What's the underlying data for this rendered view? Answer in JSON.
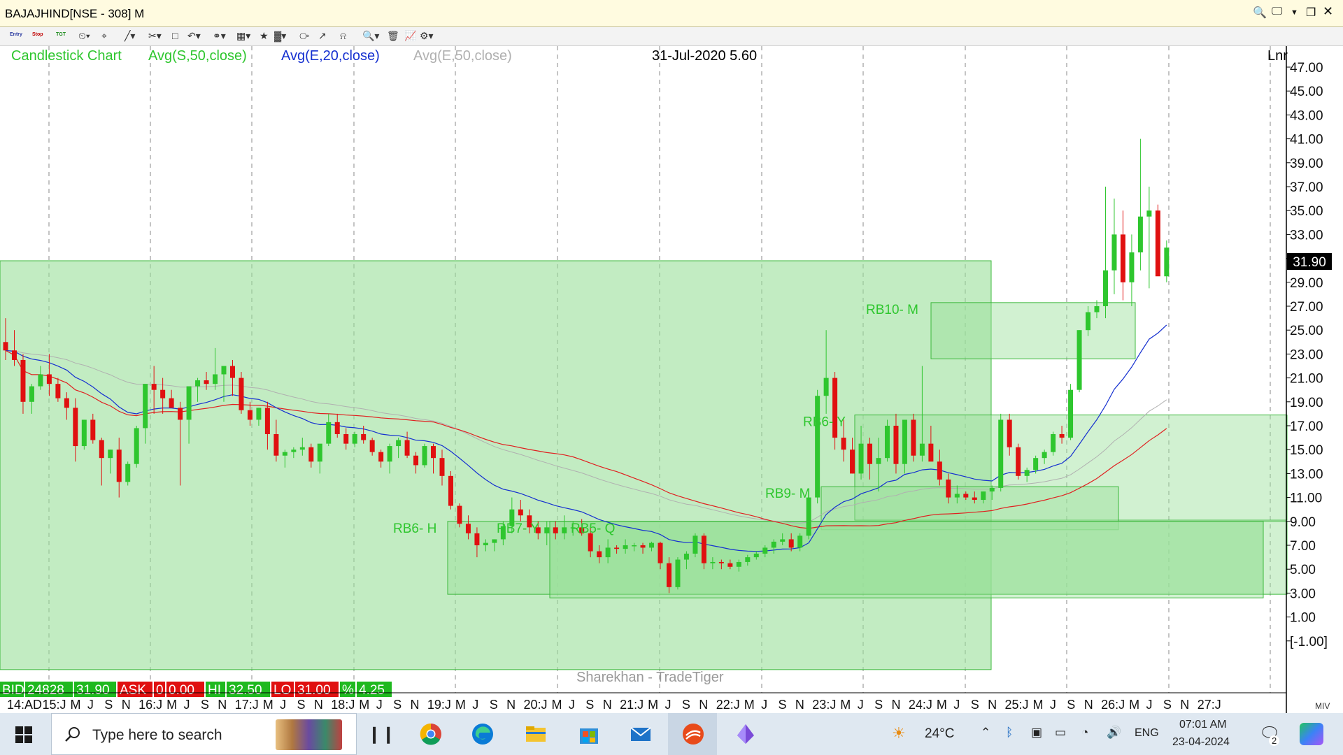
{
  "window": {
    "title": "BAJAJHIND[NSE - 308] M"
  },
  "toolbar": {
    "entry_label": "Entry",
    "stop_label": "Stop",
    "tgt_label": "TGT"
  },
  "legend": {
    "candlestick": "Candlestick Chart",
    "sma50": "Avg(S,50,close)",
    "ema20": "Avg(E,20,close)",
    "ema50": "Avg(E,50,close)",
    "cursor_readout": "31-Jul-2020 5.60",
    "scale_mode": "Lnr",
    "watermark": "Sharekhan - TradeTiger"
  },
  "colors": {
    "sma50": "#e02020",
    "ema20": "#1530d0",
    "ema50": "#b0b0b0",
    "up": "#2ec62e",
    "down": "#e01010",
    "zone_fill": "#9adf9a",
    "zone_border": "#3cb83c",
    "legend_green": "#2ec62e",
    "last_price_bg": "#000000"
  },
  "quote_bar": {
    "bid_label": "BID",
    "bid_qty": "24828",
    "bid_price": "31.90",
    "ask_label": "ASK",
    "ask_qty": "0",
    "ask_price": "0.00",
    "hi_label": "HI",
    "hi_value": "32.50",
    "lo_label": "LO",
    "lo_value": "31.00",
    "pct_label": "%",
    "pct_value": "4.25"
  },
  "chart_data": {
    "type": "candlestick",
    "symbol": "BAJAJHIND",
    "exchange": "NSE",
    "ylim": [
      -1,
      48
    ],
    "yticks": [
      47,
      45,
      43,
      41,
      39,
      37,
      35,
      33,
      31,
      29,
      27,
      25,
      23,
      21,
      19,
      17,
      15,
      13,
      11,
      9,
      7,
      5,
      3,
      1,
      -1
    ],
    "ytick_labels": [
      "47.00",
      "45.00",
      "43.00",
      "41.00",
      "39.00",
      "37.00",
      "35.00",
      "33.00",
      "31.00",
      "29.00",
      "27.00",
      "25.00",
      "23.00",
      "21.00",
      "19.00",
      "17.00",
      "15.00",
      "13.00",
      "11.00",
      "9.00",
      "7.00",
      "5.00",
      "3.00",
      "1.00",
      "[-1.00]"
    ],
    "last_price": "31.90",
    "x_axis_labels": [
      "14:AD",
      "15:J",
      "M",
      "J",
      "S",
      "N",
      "16:J",
      "M",
      "J",
      "S",
      "N",
      "17:J",
      "M",
      "J",
      "S",
      "N",
      "18:J",
      "M",
      "J",
      "S",
      "N",
      "19:J",
      "M",
      "J",
      "S",
      "N",
      "20:J",
      "M",
      "J",
      "S",
      "N",
      "21:J",
      "M",
      "J",
      "S",
      "N",
      "22:J",
      "M",
      "J",
      "S",
      "N",
      "23:J",
      "M",
      "J",
      "S",
      "N",
      "24:J",
      "M",
      "J",
      "S",
      "N",
      "25:J",
      "M",
      "J",
      "S",
      "N",
      "26:J",
      "M",
      "J",
      "S",
      "N",
      "27:J"
    ],
    "candles_ohlc": [
      [
        24.0,
        26.0,
        22.5,
        23.3
      ],
      [
        23.3,
        25.0,
        22.0,
        22.5
      ],
      [
        22.5,
        23.0,
        18.0,
        19.0
      ],
      [
        19.0,
        20.5,
        18.0,
        20.3
      ],
      [
        20.3,
        22.0,
        20.0,
        21.3
      ],
      [
        21.3,
        23.0,
        19.5,
        20.5
      ],
      [
        20.5,
        21.0,
        19.0,
        19.3
      ],
      [
        19.3,
        19.8,
        17.5,
        18.5
      ],
      [
        18.5,
        19.3,
        14.0,
        15.3
      ],
      [
        15.3,
        17.5,
        15.0,
        17.5
      ],
      [
        17.5,
        18.0,
        15.5,
        15.8
      ],
      [
        15.8,
        16.0,
        12.0,
        14.3
      ],
      [
        14.3,
        15.0,
        13.0,
        15.0
      ],
      [
        15.0,
        16.0,
        11.0,
        12.3
      ],
      [
        12.3,
        14.0,
        12.0,
        13.8
      ],
      [
        13.8,
        17.0,
        13.5,
        16.8
      ],
      [
        16.8,
        20.0,
        15.5,
        20.5
      ],
      [
        20.5,
        22.0,
        18.0,
        20.0
      ],
      [
        20.0,
        21.0,
        18.0,
        19.3
      ],
      [
        19.3,
        20.0,
        18.5,
        18.5
      ],
      [
        18.5,
        19.0,
        12.0,
        17.5
      ],
      [
        17.5,
        18.5,
        15.5,
        20.3
      ],
      [
        20.3,
        21.0,
        19.0,
        20.8
      ],
      [
        20.8,
        21.5,
        20.0,
        20.5
      ],
      [
        20.5,
        23.5,
        20.0,
        21.3
      ],
      [
        21.3,
        22.0,
        19.0,
        22.0
      ],
      [
        22.0,
        22.5,
        19.5,
        21.0
      ],
      [
        21.0,
        21.5,
        18.0,
        18.3
      ],
      [
        18.3,
        19.0,
        17.0,
        17.5
      ],
      [
        17.5,
        18.5,
        17.0,
        18.5
      ],
      [
        18.5,
        19.0,
        15.0,
        16.3
      ],
      [
        16.3,
        17.5,
        14.0,
        14.5
      ],
      [
        14.5,
        15.0,
        13.5,
        14.8
      ],
      [
        14.8,
        15.2,
        14.3,
        15.0
      ],
      [
        15.0,
        16.0,
        14.5,
        15.2
      ],
      [
        15.2,
        15.5,
        13.5,
        14.0
      ],
      [
        14.0,
        15.0,
        13.0,
        15.5
      ],
      [
        15.5,
        18.0,
        15.3,
        17.3
      ],
      [
        17.3,
        18.0,
        16.0,
        16.3
      ],
      [
        16.3,
        16.8,
        15.0,
        15.5
      ],
      [
        15.5,
        16.5,
        15.2,
        16.3
      ],
      [
        16.3,
        17.0,
        15.5,
        15.8
      ],
      [
        15.8,
        16.0,
        14.5,
        14.8
      ],
      [
        14.8,
        15.0,
        13.5,
        14.0
      ],
      [
        14.0,
        15.5,
        13.0,
        15.3
      ],
      [
        15.3,
        16.0,
        14.3,
        15.8
      ],
      [
        15.8,
        16.5,
        14.3,
        14.5
      ],
      [
        14.5,
        14.8,
        13.0,
        13.7
      ],
      [
        13.7,
        15.5,
        13.5,
        15.3
      ],
      [
        15.3,
        15.5,
        13.0,
        14.3
      ],
      [
        14.3,
        15.0,
        12.0,
        12.8
      ],
      [
        12.8,
        13.2,
        10.0,
        10.3
      ],
      [
        10.3,
        10.5,
        8.5,
        8.8
      ],
      [
        8.8,
        9.5,
        7.5,
        8.0
      ],
      [
        8.0,
        8.5,
        6.0,
        7.0
      ],
      [
        7.0,
        7.5,
        6.5,
        7.2
      ],
      [
        7.2,
        7.5,
        6.5,
        7.5
      ],
      [
        7.5,
        9.0,
        7.0,
        8.6
      ],
      [
        8.6,
        11.0,
        8.0,
        10.0
      ],
      [
        10.0,
        10.8,
        9.0,
        9.5
      ],
      [
        9.5,
        10.0,
        8.0,
        8.5
      ],
      [
        8.5,
        9.0,
        7.5,
        8.0
      ],
      [
        8.0,
        9.0,
        7.0,
        8.5
      ],
      [
        8.5,
        9.0,
        7.5,
        8.0
      ],
      [
        8.0,
        9.5,
        7.5,
        8.5
      ],
      [
        8.5,
        9.0,
        7.8,
        8.5
      ],
      [
        8.5,
        9.2,
        7.8,
        8.0
      ],
      [
        8.0,
        8.5,
        6.0,
        6.5
      ],
      [
        6.5,
        7.0,
        5.5,
        6.0
      ],
      [
        6.0,
        7.5,
        5.5,
        6.8
      ],
      [
        6.8,
        7.0,
        6.3,
        6.7
      ],
      [
        6.7,
        7.5,
        6.3,
        7.0
      ],
      [
        7.0,
        7.2,
        6.5,
        7.0
      ],
      [
        7.0,
        7.2,
        6.3,
        6.8
      ],
      [
        6.8,
        7.3,
        6.5,
        7.2
      ],
      [
        7.2,
        7.3,
        5.0,
        5.5
      ],
      [
        5.5,
        6.0,
        3.0,
        3.5
      ],
      [
        3.5,
        6.0,
        3.3,
        5.8
      ],
      [
        5.8,
        6.5,
        5.0,
        6.3
      ],
      [
        6.3,
        8.0,
        6.0,
        7.8
      ],
      [
        7.8,
        8.0,
        5.0,
        5.5
      ],
      [
        5.5,
        6.0,
        5.0,
        5.6
      ],
      [
        5.6,
        5.8,
        5.0,
        5.5
      ],
      [
        5.5,
        5.8,
        5.0,
        5.2
      ],
      [
        5.2,
        5.8,
        4.8,
        5.6
      ],
      [
        5.6,
        6.2,
        5.3,
        6.0
      ],
      [
        6.0,
        6.5,
        5.8,
        6.3
      ],
      [
        6.3,
        7.0,
        6.0,
        6.8
      ],
      [
        6.8,
        7.5,
        6.3,
        7.3
      ],
      [
        7.3,
        8.0,
        7.0,
        7.5
      ],
      [
        7.5,
        8.0,
        6.5,
        6.8
      ],
      [
        6.8,
        8.0,
        6.5,
        7.8
      ],
      [
        7.8,
        11.5,
        7.5,
        11.0
      ],
      [
        11.0,
        20.0,
        10.5,
        19.5
      ],
      [
        19.5,
        25.0,
        18.0,
        21.0
      ],
      [
        21.0,
        21.5,
        15.0,
        16.0
      ],
      [
        16.0,
        17.5,
        14.0,
        15.0
      ],
      [
        15.0,
        16.0,
        13.0,
        13.0
      ],
      [
        13.0,
        17.0,
        12.5,
        15.5
      ],
      [
        15.5,
        16.0,
        12.5,
        13.8
      ],
      [
        13.8,
        16.0,
        11.5,
        14.3
      ],
      [
        14.3,
        17.5,
        14.0,
        17.0
      ],
      [
        17.0,
        18.0,
        13.0,
        13.8
      ],
      [
        13.8,
        16.0,
        13.0,
        17.5
      ],
      [
        17.5,
        18.0,
        14.0,
        14.5
      ],
      [
        14.5,
        22.0,
        14.0,
        15.5
      ],
      [
        15.5,
        17.0,
        14.5,
        14.0
      ],
      [
        14.0,
        15.0,
        12.0,
        12.5
      ],
      [
        12.5,
        13.0,
        10.5,
        11.0
      ],
      [
        11.0,
        12.0,
        10.5,
        11.3
      ],
      [
        11.3,
        11.5,
        10.8,
        11.0
      ],
      [
        11.0,
        11.5,
        10.5,
        10.8
      ],
      [
        10.8,
        11.5,
        10.5,
        11.5
      ],
      [
        11.5,
        12.0,
        10.8,
        11.8
      ],
      [
        11.8,
        18.0,
        11.5,
        17.5
      ],
      [
        17.5,
        18.0,
        14.5,
        15.2
      ],
      [
        15.2,
        15.5,
        12.5,
        12.8
      ],
      [
        12.8,
        13.5,
        12.3,
        13.3
      ],
      [
        13.3,
        14.5,
        13.0,
        14.3
      ],
      [
        14.3,
        15.0,
        13.8,
        14.8
      ],
      [
        14.8,
        16.5,
        14.5,
        16.3
      ],
      [
        16.3,
        17.0,
        15.5,
        16.0
      ],
      [
        16.0,
        20.5,
        15.8,
        20.0
      ],
      [
        20.0,
        25.0,
        19.8,
        25.0
      ],
      [
        25.0,
        27.0,
        24.5,
        26.5
      ],
      [
        26.5,
        27.5,
        26.0,
        27.0
      ],
      [
        27.0,
        37.0,
        26.0,
        30.0
      ],
      [
        30.0,
        36.0,
        28.0,
        33.0
      ],
      [
        33.0,
        35.0,
        27.5,
        29.0
      ],
      [
        29.0,
        33.0,
        27.0,
        31.5
      ],
      [
        31.5,
        41.0,
        30.0,
        34.5
      ],
      [
        34.5,
        37.0,
        28.5,
        35.0
      ],
      [
        35.0,
        35.5,
        30.0,
        29.5
      ],
      [
        29.5,
        32.5,
        29.0,
        31.9
      ]
    ],
    "zones": [
      {
        "label": "RB10- M",
        "top": 27.3,
        "bottom": 22.6
      },
      {
        "label": "RB6- Y",
        "top": 17.9,
        "bottom": 9.1
      },
      {
        "label": "RB9- M",
        "top": 11.9,
        "bottom": 8.3
      },
      {
        "label": "RB6- H",
        "top": 9.0,
        "bottom": 2.9
      },
      {
        "label": "RB7- Y",
        "top": 9.0,
        "bottom": 2.9
      },
      {
        "label": "RB5- Q",
        "top": 9.0,
        "bottom": 2.6
      }
    ],
    "big_zone": {
      "top": 30.8,
      "bottom": -3.4
    }
  },
  "taskbar": {
    "search_placeholder": "Type here to search",
    "weather": "24°C",
    "language": "ENG",
    "time": "07:01 AM",
    "date": "23-04-2024",
    "notification_count": "2"
  }
}
